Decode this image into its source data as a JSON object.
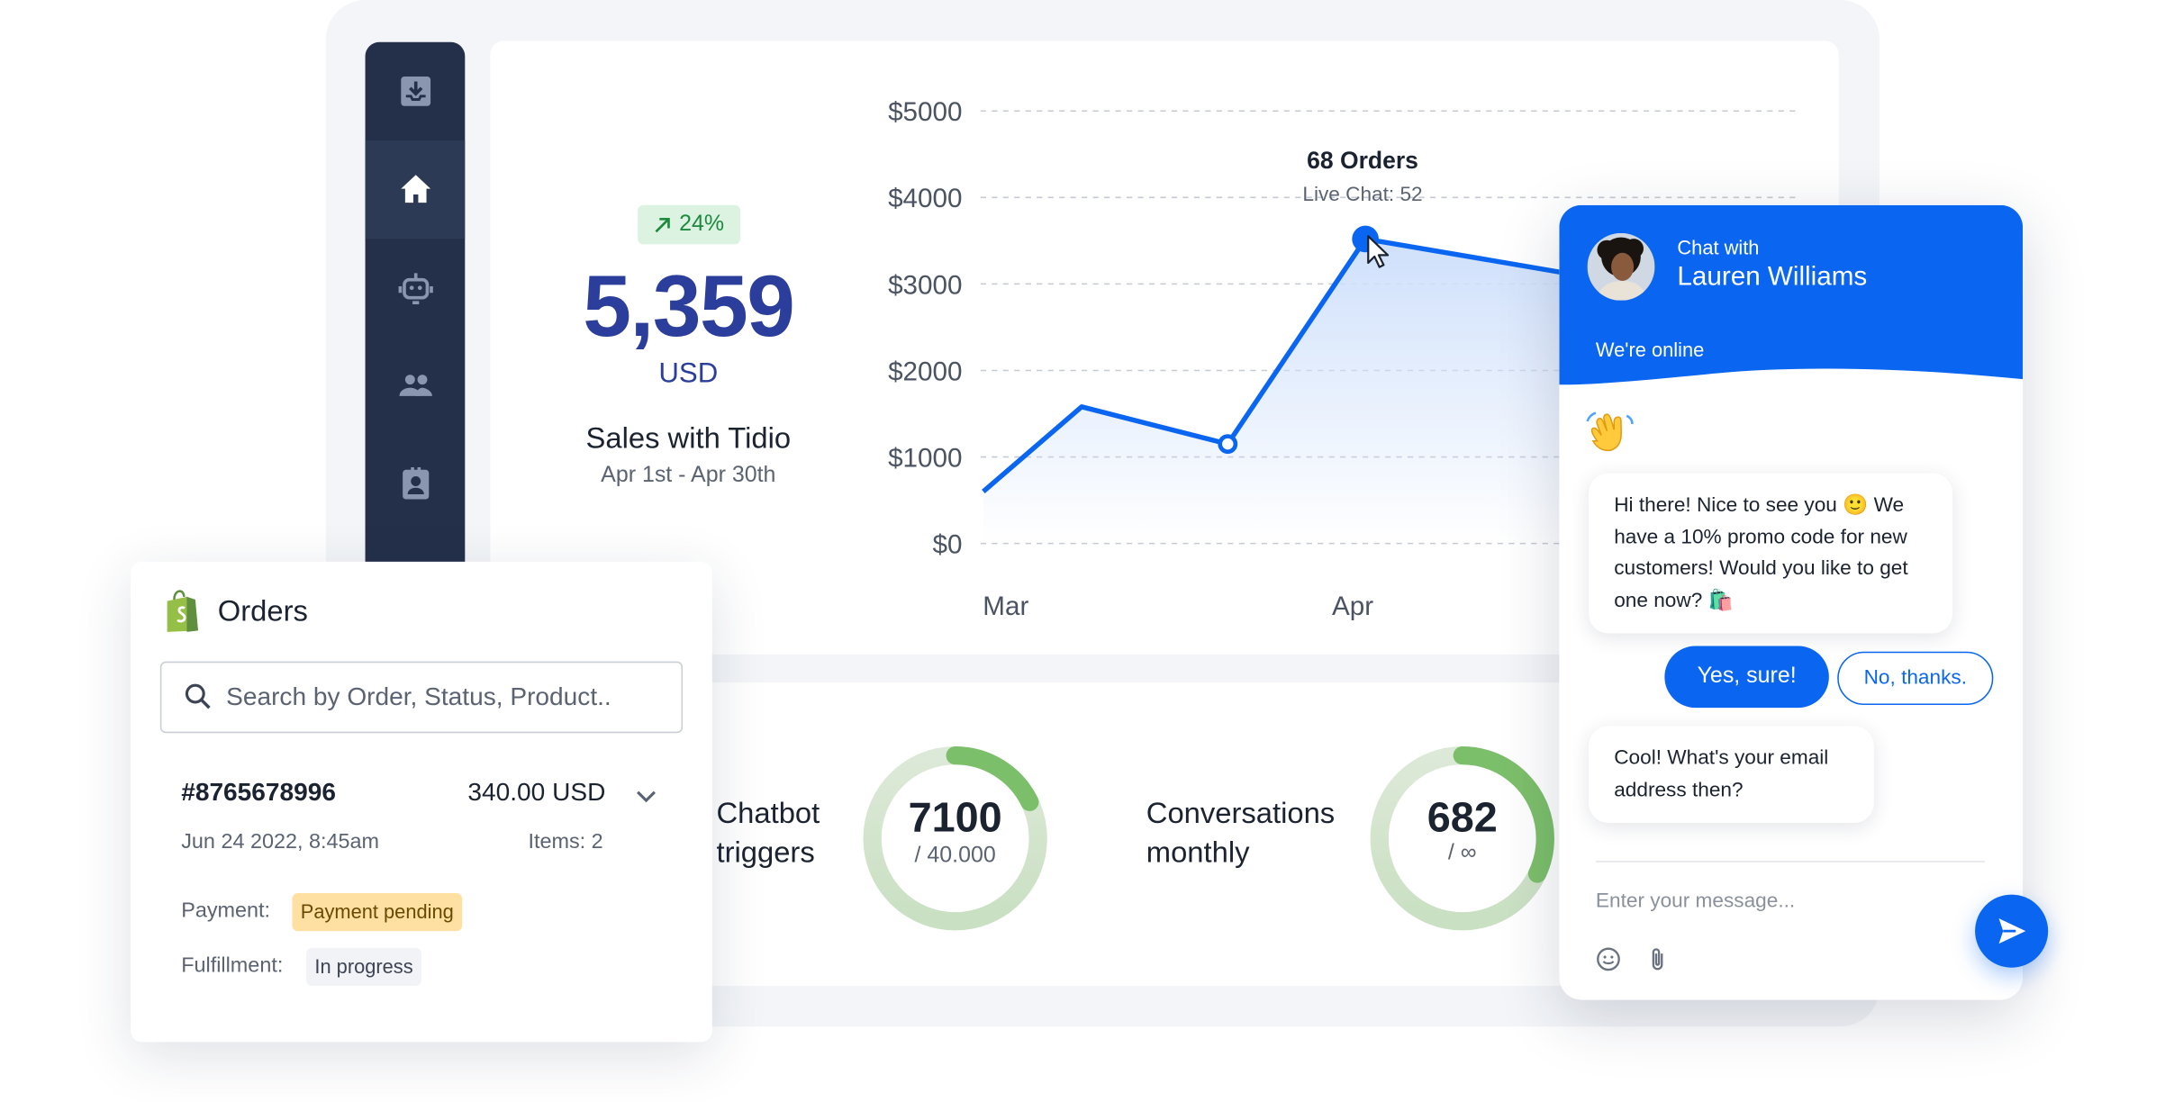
{
  "sidebar": {
    "items": [
      {
        "name": "inbox",
        "icon": "inbox-icon",
        "active": false
      },
      {
        "name": "home",
        "icon": "home-icon",
        "active": true
      },
      {
        "name": "bot",
        "icon": "bot-icon",
        "active": false
      },
      {
        "name": "visitors",
        "icon": "people-icon",
        "active": false
      },
      {
        "name": "contacts",
        "icon": "contact-card-icon",
        "active": false
      }
    ]
  },
  "sales": {
    "change_badge": "24%",
    "value": "5,359",
    "currency": "USD",
    "title": "Sales with Tidio",
    "range": "Apr 1st - Apr 30th"
  },
  "chart_data": {
    "type": "area",
    "y_ticks": [
      "$5000",
      "$4000",
      "$3000",
      "$2000",
      "$1000",
      "$0"
    ],
    "ylim": [
      0,
      5000
    ],
    "x_ticks": [
      "Mar",
      "Apr"
    ],
    "series": [
      {
        "values": [
          600,
          1580,
          1150,
          3520,
          3000
        ]
      }
    ],
    "tooltip": {
      "title": "68 Orders",
      "subtitle": "Live Chat: 52"
    },
    "grid": true,
    "colors": {
      "line": "#0a66f0",
      "fill": "#cfe0fb"
    }
  },
  "stats": {
    "chatbot": {
      "label_line1": "Chatbot",
      "label_line2": "triggers",
      "value": "7100",
      "sub": "/ 40.000",
      "fraction": 0.1775
    },
    "conversations": {
      "label_line1": "Conversations",
      "label_line2": "monthly",
      "value": "682",
      "sub": "/ ∞",
      "fraction": 0.32
    }
  },
  "orders": {
    "title": "Orders",
    "search_placeholder": "Search by Order, Status, Product..",
    "order": {
      "id": "#8765678996",
      "amount": "340.00 USD",
      "date": "Jun 24 2022, 8:45am",
      "items": "Items: 2",
      "payment_label": "Payment:",
      "payment_status": "Payment pending",
      "fulfillment_label": "Fulfillment:",
      "fulfillment_status": "In progress"
    }
  },
  "chat": {
    "chat_with": "Chat with",
    "agent_name": "Lauren Williams",
    "status": "We're online",
    "message1": "Hi there! Nice to see you 🙂 We have a 10% promo code for new customers! Would you like to get one now? 🛍️",
    "yes_button": "Yes, sure!",
    "no_button": "No, thanks.",
    "message2": "Cool! What's your email address then?",
    "input_placeholder": "Enter your message...",
    "accent": "#0a66f0"
  }
}
